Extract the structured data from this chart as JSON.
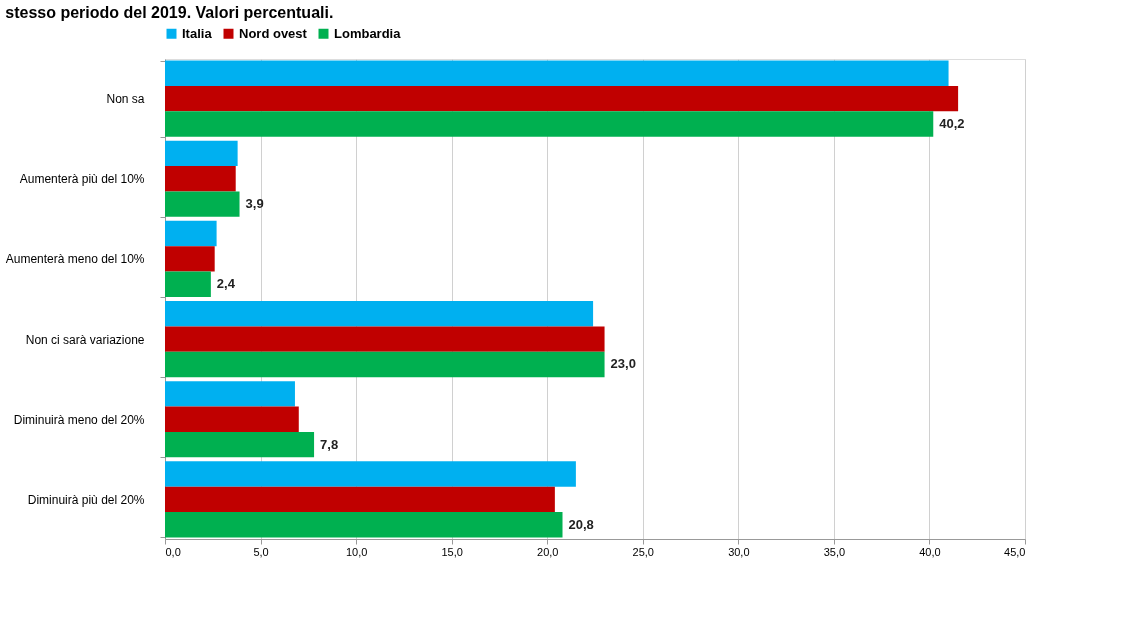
{
  "chart_data": {
    "type": "bar",
    "orientation": "horizontal",
    "title": "stesso periodo del 2019. Valori percentuali.",
    "categories": [
      "Non sa",
      "Aumenterà più del 10%",
      "Aumenterà meno del 10%",
      "Non ci sarà variazione",
      "Diminuirà meno del 20%",
      "Diminuirà più del 20%"
    ],
    "series": [
      {
        "name": "Italia",
        "color": "#00b0f0",
        "values": [
          41.0,
          3.8,
          2.7,
          22.4,
          6.8,
          21.5
        ]
      },
      {
        "name": "Nord ovest",
        "color": "#c00000",
        "values": [
          41.5,
          3.7,
          2.6,
          23.0,
          7.0,
          20.4
        ]
      },
      {
        "name": "Lombardia",
        "color": "#00b050",
        "values": [
          40.2,
          3.9,
          2.4,
          23.0,
          7.8,
          20.8
        ],
        "value_labels": [
          "40,2",
          "3,9",
          "2,4",
          "23,0",
          "7,8",
          "20,8"
        ]
      }
    ],
    "xlim": [
      0,
      45
    ],
    "xticks": [
      {
        "value": 0,
        "label": "0,0"
      },
      {
        "value": 5,
        "label": "5,0"
      },
      {
        "value": 10,
        "label": "10,0"
      },
      {
        "value": 15,
        "label": "15,0"
      },
      {
        "value": 20,
        "label": "20,0"
      },
      {
        "value": 25,
        "label": "25,0"
      },
      {
        "value": 30,
        "label": "30,0"
      },
      {
        "value": 35,
        "label": "35,0"
      },
      {
        "value": 40,
        "label": "40,0"
      },
      {
        "value": 45,
        "label": "45,0"
      }
    ],
    "grid": "x",
    "legend": "top"
  }
}
